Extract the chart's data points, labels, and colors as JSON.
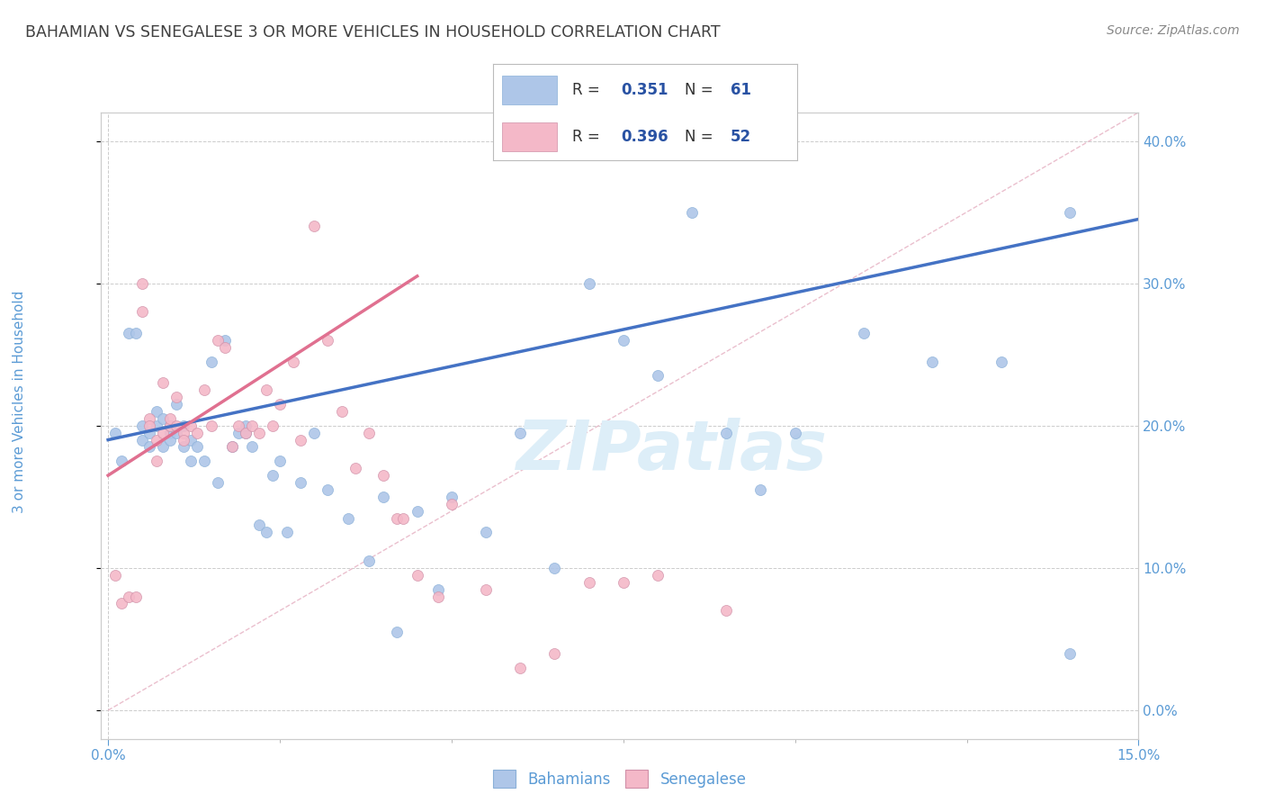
{
  "title": "BAHAMIAN VS SENEGALESE 3 OR MORE VEHICLES IN HOUSEHOLD CORRELATION CHART",
  "source": "Source: ZipAtlas.com",
  "ylabel_label": "3 or more Vehicles in Household",
  "bahamians_R": 0.351,
  "bahamians_N": 61,
  "senegalese_R": 0.396,
  "senegalese_N": 52,
  "bahamian_color": "#aec6e8",
  "senegalese_color": "#f4b8c8",
  "bahamian_line_color": "#4472c4",
  "senegalese_line_color": "#e07090",
  "diagonal_line_color": "#e0b0b0",
  "watermark_color": "#ddeeff",
  "legend_text_color": "#2952a3",
  "title_color": "#404040",
  "axis_color": "#5b9bd5",
  "background_color": "#ffffff",
  "x_max": 0.15,
  "y_max": 0.42,
  "y_min": -0.02,
  "x_min": -0.001,
  "bahamians_x": [
    0.001,
    0.002,
    0.003,
    0.004,
    0.005,
    0.005,
    0.006,
    0.006,
    0.007,
    0.007,
    0.008,
    0.008,
    0.009,
    0.009,
    0.009,
    0.01,
    0.01,
    0.011,
    0.011,
    0.012,
    0.012,
    0.013,
    0.014,
    0.015,
    0.016,
    0.017,
    0.018,
    0.019,
    0.02,
    0.02,
    0.021,
    0.022,
    0.023,
    0.024,
    0.025,
    0.026,
    0.028,
    0.03,
    0.032,
    0.035,
    0.038,
    0.04,
    0.042,
    0.045,
    0.048,
    0.05,
    0.055,
    0.06,
    0.065,
    0.07,
    0.075,
    0.08,
    0.085,
    0.09,
    0.095,
    0.1,
    0.11,
    0.12,
    0.13,
    0.14,
    0.14
  ],
  "bahamians_y": [
    0.195,
    0.175,
    0.265,
    0.265,
    0.19,
    0.2,
    0.195,
    0.185,
    0.21,
    0.2,
    0.185,
    0.205,
    0.195,
    0.19,
    0.2,
    0.195,
    0.215,
    0.185,
    0.2,
    0.19,
    0.175,
    0.185,
    0.175,
    0.245,
    0.16,
    0.26,
    0.185,
    0.195,
    0.195,
    0.2,
    0.185,
    0.13,
    0.125,
    0.165,
    0.175,
    0.125,
    0.16,
    0.195,
    0.155,
    0.135,
    0.105,
    0.15,
    0.055,
    0.14,
    0.085,
    0.15,
    0.125,
    0.195,
    0.1,
    0.3,
    0.26,
    0.235,
    0.35,
    0.195,
    0.155,
    0.195,
    0.265,
    0.245,
    0.245,
    0.35,
    0.04
  ],
  "senegalese_x": [
    0.001,
    0.002,
    0.003,
    0.004,
    0.005,
    0.005,
    0.006,
    0.006,
    0.007,
    0.007,
    0.008,
    0.008,
    0.009,
    0.009,
    0.01,
    0.01,
    0.011,
    0.011,
    0.012,
    0.013,
    0.014,
    0.015,
    0.016,
    0.017,
    0.018,
    0.019,
    0.02,
    0.021,
    0.022,
    0.023,
    0.024,
    0.025,
    0.027,
    0.028,
    0.03,
    0.032,
    0.034,
    0.036,
    0.038,
    0.04,
    0.042,
    0.043,
    0.045,
    0.048,
    0.05,
    0.055,
    0.06,
    0.065,
    0.07,
    0.075,
    0.08,
    0.09
  ],
  "senegalese_y": [
    0.095,
    0.075,
    0.08,
    0.08,
    0.3,
    0.28,
    0.205,
    0.2,
    0.19,
    0.175,
    0.23,
    0.195,
    0.2,
    0.205,
    0.22,
    0.2,
    0.195,
    0.19,
    0.2,
    0.195,
    0.225,
    0.2,
    0.26,
    0.255,
    0.185,
    0.2,
    0.195,
    0.2,
    0.195,
    0.225,
    0.2,
    0.215,
    0.245,
    0.19,
    0.34,
    0.26,
    0.21,
    0.17,
    0.195,
    0.165,
    0.135,
    0.135,
    0.095,
    0.08,
    0.145,
    0.085,
    0.03,
    0.04,
    0.09,
    0.09,
    0.095,
    0.07
  ],
  "bah_trend_x": [
    0.0,
    0.15
  ],
  "bah_trend_y": [
    0.19,
    0.345
  ],
  "sen_trend_x": [
    0.0,
    0.045
  ],
  "sen_trend_y": [
    0.165,
    0.305
  ]
}
